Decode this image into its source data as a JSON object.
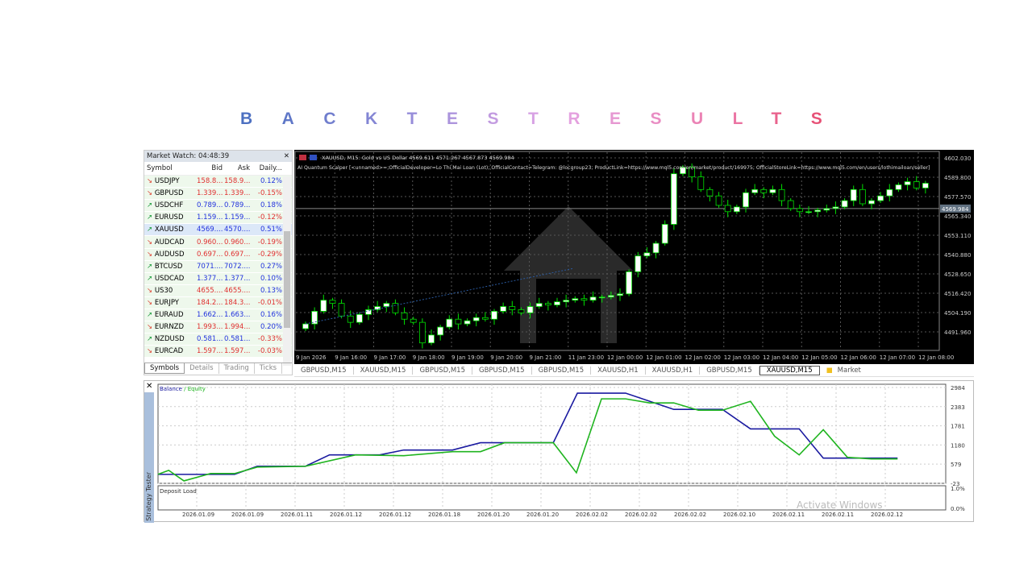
{
  "title": "BACKTESTRESULTS",
  "market_watch": {
    "header": "Market Watch: 04:48:39",
    "columns": [
      "Symbol",
      "Bid",
      "Ask",
      "Daily..."
    ],
    "rows": [
      {
        "dir": "down",
        "symbol": "USDJPY",
        "bid": "158.8...",
        "ask": "158.9...",
        "daily": "0.12%",
        "color": "red",
        "daily_color": "blue"
      },
      {
        "dir": "down",
        "symbol": "GBPUSD",
        "bid": "1.339...",
        "ask": "1.339...",
        "daily": "-0.15%",
        "color": "red",
        "daily_color": "red"
      },
      {
        "dir": "up",
        "symbol": "USDCHF",
        "bid": "0.789...",
        "ask": "0.789...",
        "daily": "0.18%",
        "color": "blue",
        "daily_color": "blue"
      },
      {
        "dir": "up",
        "symbol": "EURUSD",
        "bid": "1.159...",
        "ask": "1.159...",
        "daily": "-0.12%",
        "color": "blue",
        "daily_color": "red"
      },
      {
        "dir": "up",
        "symbol": "XAUUSD",
        "bid": "4569....",
        "ask": "4570....",
        "daily": "0.51%",
        "color": "blue",
        "daily_color": "blue",
        "selected": true
      },
      {
        "dir": "down",
        "symbol": "AUDCAD",
        "bid": "0.960...",
        "ask": "0.960...",
        "daily": "-0.19%",
        "color": "red",
        "daily_color": "red"
      },
      {
        "dir": "down",
        "symbol": "AUDUSD",
        "bid": "0.697...",
        "ask": "0.697...",
        "daily": "-0.29%",
        "color": "red",
        "daily_color": "red"
      },
      {
        "dir": "up",
        "symbol": "BTCUSD",
        "bid": "7071....",
        "ask": "7072....",
        "daily": "0.27%",
        "color": "blue",
        "daily_color": "blue"
      },
      {
        "dir": "up",
        "symbol": "USDCAD",
        "bid": "1.377...",
        "ask": "1.377...",
        "daily": "0.10%",
        "color": "blue",
        "daily_color": "blue"
      },
      {
        "dir": "down",
        "symbol": "US30",
        "bid": "4655....",
        "ask": "4655....",
        "daily": "0.13%",
        "color": "red",
        "daily_color": "blue"
      },
      {
        "dir": "down",
        "symbol": "EURJPY",
        "bid": "184.2...",
        "ask": "184.3...",
        "daily": "-0.01%",
        "color": "red",
        "daily_color": "red"
      },
      {
        "dir": "up",
        "symbol": "EURAUD",
        "bid": "1.662...",
        "ask": "1.663...",
        "daily": "0.16%",
        "color": "blue",
        "daily_color": "blue"
      },
      {
        "dir": "down",
        "symbol": "EURNZD",
        "bid": "1.993...",
        "ask": "1.994...",
        "daily": "0.20%",
        "color": "red",
        "daily_color": "blue"
      },
      {
        "dir": "up",
        "symbol": "NZDUSD",
        "bid": "0.581...",
        "ask": "0.581...",
        "daily": "-0.33%",
        "color": "blue",
        "daily_color": "red"
      },
      {
        "dir": "down",
        "symbol": "EURCAD",
        "bid": "1.597...",
        "ask": "1.597...",
        "daily": "-0.03%",
        "color": "red",
        "daily_color": "red"
      }
    ],
    "tabs": [
      "Symbols",
      "Details",
      "Trading",
      "Ticks"
    ],
    "active_tab": "Symbols"
  },
  "price_chart": {
    "header": "XAUUSD, M15:  Gold vs US Dollar  4569.611 4571.267 4567.873 4569.984",
    "ea_line": "AI Quantum Scalper [<unnamed>=;OfficialDeveloper=Lo Thi Mai Loan (Lot); OfficialContact=Telegram: @locgroup23; ProductLink=https://www.mql5.com/en/market/product/169975; OfficialStoreLink=https://www.mql5.com/en/users/lothimailoan/seller]",
    "price_ticks": [
      "4602.030",
      "4589.800",
      "4577.570",
      "4565.340",
      "4553.110",
      "4540.880",
      "4528.650",
      "4516.420",
      "4504.190",
      "4491.960"
    ],
    "current_price": "4569.984",
    "time_ticks": [
      "9 Jan 2026",
      "9 Jan 16:00",
      "9 Jan 17:00",
      "9 Jan 18:00",
      "9 Jan 19:00",
      "9 Jan 20:00",
      "9 Jan 21:00",
      "11 Jan 23:00",
      "12 Jan 00:00",
      "12 Jan 01:00",
      "12 Jan 02:00",
      "12 Jan 03:00",
      "12 Jan 04:00",
      "12 Jan 05:00",
      "12 Jan 06:00",
      "12 Jan 07:00",
      "12 Jan 08:00"
    ],
    "closes": [
      4497,
      4505,
      4512,
      4510,
      4502,
      4498,
      4503,
      4506,
      4508,
      4510,
      4504,
      4500,
      4498,
      4485,
      4490,
      4495,
      4500,
      4497,
      4499,
      4501,
      4500,
      4505,
      4508,
      4506,
      4504,
      4508,
      4510,
      4509,
      4511,
      4512,
      4513,
      4512,
      4514,
      4514,
      4515,
      4516,
      4530,
      4540,
      4542,
      4548,
      4560,
      4592,
      4596,
      4590,
      4582,
      4578,
      4572,
      4568,
      4571,
      4580,
      4582,
      4580,
      4582,
      4575,
      4570,
      4568,
      4568,
      4569,
      4570,
      4571,
      4575,
      4582,
      4573,
      4575,
      4578,
      4582,
      4585,
      4587,
      4583,
      4586
    ],
    "bull_color": "#ffffff",
    "bear_color": "#000000",
    "wick_color": "#00e000"
  },
  "chart_tabs": [
    "GBPUSD,M15",
    "XAUUSD,M15",
    "GBPUSD,M15",
    "GBPUSD,M15",
    "GBPUSD,M15",
    "XAUUSD,H1",
    "XAUUSD,H1",
    "GBPUSD,M15",
    "XAUUSD,M15",
    "Market"
  ],
  "active_chart_tab": 8,
  "tester": {
    "side_label": "Strategy Tester",
    "chart_data": {
      "type": "line",
      "legend": [
        "Balance",
        "Equity"
      ],
      "y_ticks": [
        "2984",
        "2383",
        "1781",
        "1180",
        "579",
        "-23"
      ],
      "ylim": [
        -23,
        2984
      ],
      "x_tick_labels": [
        "2026.01.09",
        "2026.01.09",
        "2026.01.11",
        "2026.01.12",
        "2026.01.12",
        "2026.01.18",
        "2026.01.20",
        "2026.01.20",
        "2026.02.02",
        "2026.02.02",
        "2026.02.02",
        "2026.02.10",
        "2026.02.11",
        "2026.02.11",
        "2026.02.12"
      ],
      "series": [
        {
          "name": "Balance",
          "color": "#1a1aa0",
          "x": [
            0.21,
            1.77,
            2.23,
            3.21,
            3.7,
            4.72,
            5.21,
            6.2,
            6.77,
            8.25,
            8.74,
            9.72,
            10.7,
            11.69,
            12.26,
            13.25,
            13.74,
            15.25
          ],
          "y": [
            258,
            258,
            513,
            513,
            869,
            869,
            1022,
            1022,
            1251,
            1251,
            2806,
            2806,
            2296,
            2296,
            1685,
            1685,
            767,
            767
          ]
        },
        {
          "name": "Equity",
          "color": "#1fb41f",
          "x": [
            0.21,
            0.43,
            0.74,
            1.28,
            1.77,
            2.23,
            3.21,
            4.23,
            5.21,
            6.2,
            6.77,
            7.26,
            8.25,
            8.72,
            9.23,
            9.72,
            10.21,
            10.7,
            11.2,
            11.69,
            12.26,
            12.75,
            13.25,
            13.74,
            14.23,
            14.72,
            15.25
          ],
          "y": [
            258,
            385,
            54,
            284,
            284,
            487,
            513,
            869,
            844,
            971,
            971,
            1251,
            1251,
            309,
            2627,
            2627,
            2500,
            2500,
            2271,
            2271,
            2551,
            1455,
            869,
            1659,
            793,
            742,
            742
          ]
        }
      ]
    },
    "deposit_load": {
      "label": "Deposit Load",
      "ticks": [
        "1.0%",
        "0.0%"
      ]
    }
  },
  "watermark": "Activate Windows"
}
